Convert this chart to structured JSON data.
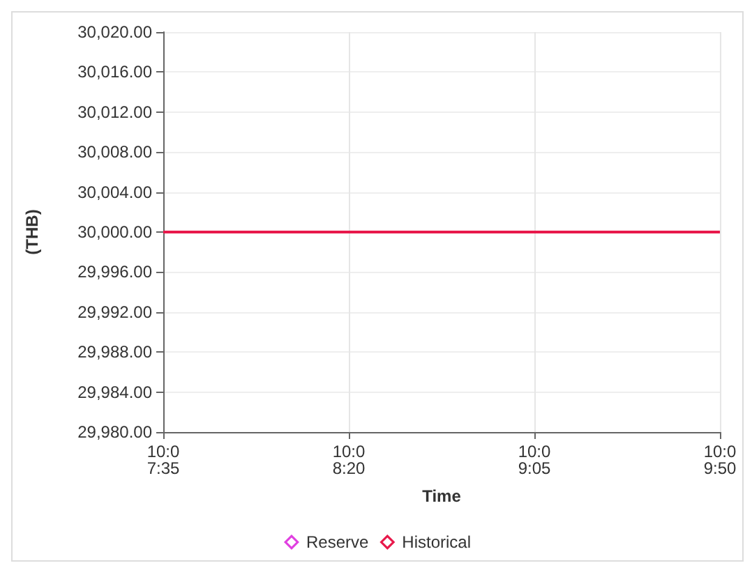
{
  "chart_data": {
    "type": "line",
    "xlabel": "Time",
    "ylabel": "(THB)",
    "categories": [
      "10:0\n7:35",
      "10:0\n8:20",
      "10:0\n9:05",
      "10:0\n9:50"
    ],
    "series": [
      {
        "name": "Reserve",
        "color": "#e040e0",
        "values": [
          null,
          null,
          null,
          null
        ]
      },
      {
        "name": "Historical",
        "color": "#e8194b",
        "values": [
          30000,
          30000,
          30000,
          30000
        ]
      }
    ],
    "ylim": [
      29980,
      30020
    ],
    "yticks": [
      {
        "value": 29980,
        "label": "29,980.00"
      },
      {
        "value": 29984,
        "label": "29,984.00"
      },
      {
        "value": 29988,
        "label": "29,988.00"
      },
      {
        "value": 29992,
        "label": "29,992.00"
      },
      {
        "value": 29996,
        "label": "29,996.00"
      },
      {
        "value": 30000,
        "label": "30,000.00"
      },
      {
        "value": 30004,
        "label": "30,004.00"
      },
      {
        "value": 30008,
        "label": "30,008.00"
      },
      {
        "value": 30012,
        "label": "30,012.00"
      },
      {
        "value": 30016,
        "label": "30,016.00"
      },
      {
        "value": 30020,
        "label": "30,020.00"
      }
    ],
    "grid": true,
    "legend": "bottom",
    "line_style": "solid"
  }
}
